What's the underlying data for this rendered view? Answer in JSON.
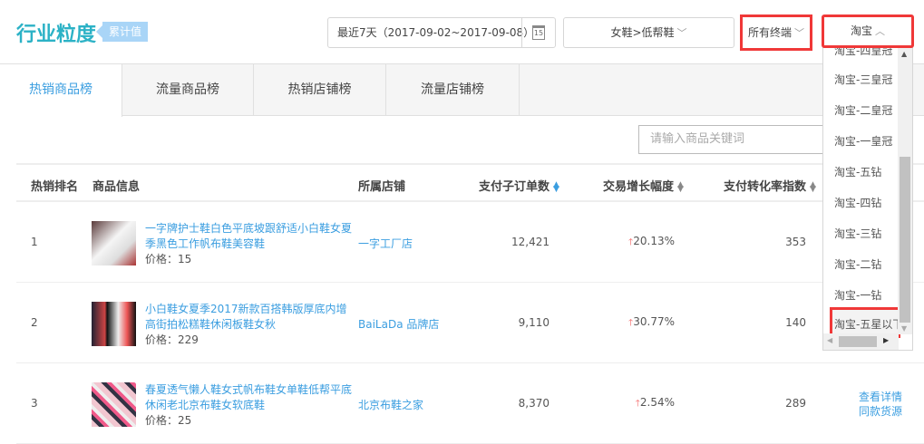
{
  "header": {
    "title": "行业粒度",
    "badge": "累计值",
    "date_range": "最近7天（2017-09-02~2017-09-08）",
    "calendar_day": "15",
    "category": "女鞋>低帮鞋",
    "terminal": "所有终端",
    "platform": "淘宝"
  },
  "tabs": [
    {
      "label": "热销商品榜",
      "active": true
    },
    {
      "label": "流量商品榜"
    },
    {
      "label": "热销店铺榜"
    },
    {
      "label": "流量店铺榜"
    }
  ],
  "search": {
    "placeholder": "请输入商品关键词"
  },
  "table": {
    "headers": [
      "热销排名",
      "商品信息",
      "所属店铺",
      "支付子订单数",
      "交易增长幅度",
      "支付转化率指数"
    ],
    "rows": [
      {
        "rank": "1",
        "title": "一字牌护士鞋白色平底坡跟舒适小白鞋女夏季黑色工作帆布鞋美容鞋",
        "price": "价格：15",
        "shop": "一字工厂店",
        "orders": "12,421",
        "growth": "20.13%",
        "conversion": "353"
      },
      {
        "rank": "2",
        "title": "小白鞋女夏季2017新款百搭韩版厚底内增高街拍松糕鞋休闲板鞋女秋",
        "price": "价格：229",
        "shop": "BaiLaDa 品牌店",
        "orders": "9,110",
        "growth": "30.77%",
        "conversion": "140"
      },
      {
        "rank": "3",
        "title": "春夏透气懒人鞋女式帆布鞋女单鞋低帮平底休闲老北京布鞋女软底鞋",
        "price": "价格：25",
        "shop": "北京布鞋之家",
        "orders": "8,370",
        "growth": "2.54%",
        "conversion": "289",
        "action1": "查看详情",
        "action2": "同款货源"
      }
    ]
  },
  "dropdown": {
    "items": [
      "淘宝-四皇冠",
      "淘宝-三皇冠",
      "淘宝-二皇冠",
      "淘宝-一皇冠",
      "淘宝-五钻",
      "淘宝-四钻",
      "淘宝-三钻",
      "淘宝-二钻",
      "淘宝-一钻",
      "淘宝-五星以下"
    ],
    "selected": "淘宝-五星以下"
  },
  "colors": {
    "accent": "#3b9ee0",
    "title": "#2cb2c6",
    "highlight": "#f03838",
    "up": "#f35b5b"
  }
}
